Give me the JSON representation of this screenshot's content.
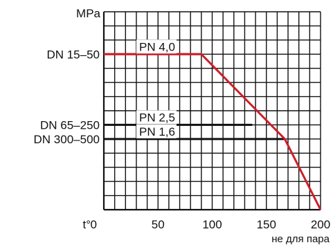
{
  "chart_data": {
    "type": "line",
    "ylabel": "MPa",
    "xlabel": "t°",
    "x_note": "не для пара",
    "xlim": [
      0,
      200
    ],
    "x_ticks": [
      {
        "value": 0,
        "label": "0"
      },
      {
        "value": 50,
        "label": "50"
      },
      {
        "value": 100,
        "label": "100"
      },
      {
        "value": 150,
        "label": "150"
      },
      {
        "value": 200,
        "label": "200"
      }
    ],
    "y_rows": 14,
    "y_categories": [
      {
        "label": "DN 15–50",
        "row": 11
      },
      {
        "label": "DN 65–250",
        "row": 6
      },
      {
        "label": "DN 300–500",
        "row": 5
      }
    ],
    "grid": true,
    "grid_cols": 20,
    "pressure_lines": [
      {
        "label": "PN 4,0",
        "row": 11,
        "x_end": 90,
        "color": "#cc1f2b"
      },
      {
        "label": "PN 2,5",
        "row": 6,
        "x_end": 137,
        "color": "#111111"
      },
      {
        "label": "PN 1,6",
        "row": 5,
        "x_end": 167,
        "color": "#111111"
      }
    ],
    "limit_curve": {
      "color": "#cc1f2b",
      "points": [
        {
          "x": 0,
          "row": 11
        },
        {
          "x": 90,
          "row": 11
        },
        {
          "x": 167,
          "row": 5
        },
        {
          "x": 200,
          "row": 0
        }
      ]
    }
  }
}
